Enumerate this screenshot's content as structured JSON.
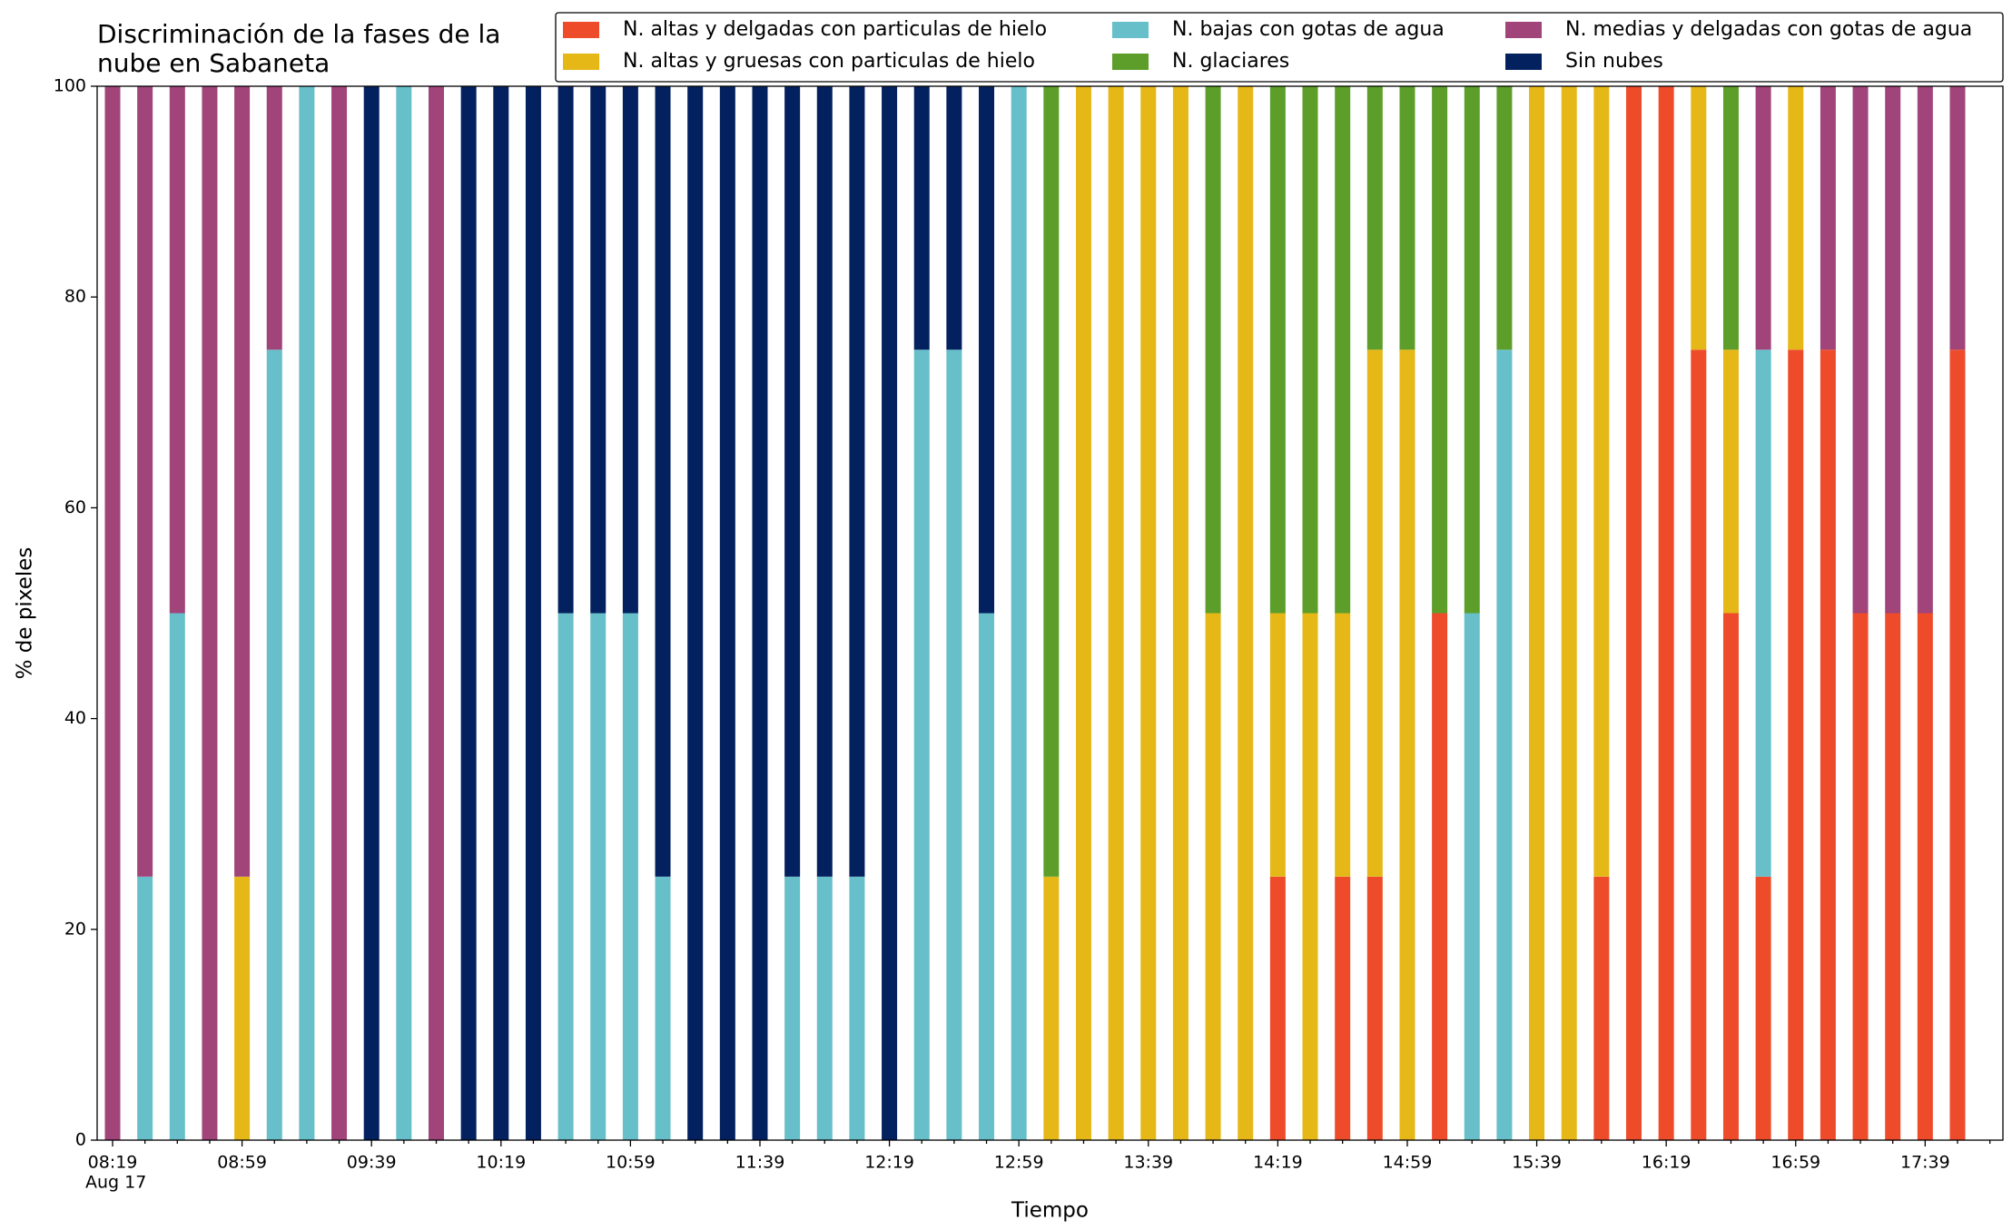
{
  "chart_data": {
    "type": "stacked_bar",
    "title": "Discriminación de la fases de la\nnube en Sabaneta",
    "xlabel": "Tiempo",
    "ylabel": "% de pixeles",
    "date_label": "Aug 17",
    "categories": [
      "08:19",
      null,
      null,
      null,
      "08:59",
      null,
      null,
      null,
      "09:39",
      null,
      null,
      null,
      "10:19",
      null,
      null,
      null,
      "10:59",
      null,
      null,
      null,
      "11:39",
      null,
      null,
      null,
      "12:19",
      null,
      null,
      null,
      "12:59",
      null,
      null,
      null,
      "13:39",
      null,
      null,
      null,
      "14:19",
      null,
      null,
      null,
      "14:59",
      null,
      null,
      null,
      "15:39",
      null,
      null,
      null,
      "16:19",
      null,
      null,
      null,
      "16:59",
      null,
      null,
      null,
      "17:39",
      null
    ],
    "ylim": [
      0,
      100
    ],
    "yticks": [
      0,
      20,
      40,
      60,
      80,
      100
    ],
    "legend": "top-right",
    "series": [
      {
        "name": "N. altas y delgadas con particulas de hielo",
        "color": "#ee4b2b",
        "values": [
          0,
          0,
          0,
          0,
          0,
          0,
          0,
          0,
          0,
          0,
          0,
          0,
          0,
          0,
          0,
          0,
          0,
          0,
          0,
          0,
          0,
          0,
          0,
          0,
          0,
          0,
          0,
          0,
          0,
          0,
          0,
          0,
          0,
          0,
          0,
          0,
          25,
          0,
          25,
          25,
          0,
          50,
          0,
          0,
          0,
          0,
          25,
          100,
          100,
          75,
          50,
          25,
          75,
          75,
          50,
          50,
          50,
          75
        ]
      },
      {
        "name": "N. altas y gruesas con particulas de hielo",
        "color": "#e5b817",
        "values": [
          0,
          0,
          0,
          0,
          25,
          0,
          0,
          0,
          0,
          0,
          0,
          0,
          0,
          0,
          0,
          0,
          0,
          0,
          0,
          0,
          0,
          0,
          0,
          0,
          0,
          0,
          0,
          0,
          0,
          25,
          100,
          100,
          100,
          100,
          50,
          100,
          25,
          50,
          25,
          50,
          75,
          0,
          0,
          0,
          100,
          100,
          75,
          0,
          0,
          25,
          25,
          0,
          25,
          0,
          0,
          0,
          0,
          0
        ]
      },
      {
        "name": "N. bajas con gotas de agua",
        "color": "#66bfc9",
        "values": [
          0,
          25,
          50,
          0,
          0,
          75,
          100,
          0,
          0,
          100,
          0,
          0,
          0,
          0,
          50,
          50,
          50,
          25,
          0,
          0,
          0,
          25,
          25,
          25,
          0,
          75,
          75,
          50,
          100,
          0,
          0,
          0,
          0,
          0,
          0,
          0,
          0,
          0,
          0,
          0,
          0,
          0,
          50,
          75,
          0,
          0,
          0,
          0,
          0,
          0,
          0,
          50,
          0,
          0,
          0,
          0,
          0,
          0
        ]
      },
      {
        "name": "N. glaciares",
        "color": "#5d9e2a",
        "values": [
          0,
          0,
          0,
          0,
          0,
          0,
          0,
          0,
          0,
          0,
          0,
          0,
          0,
          0,
          0,
          0,
          0,
          0,
          0,
          0,
          0,
          0,
          0,
          0,
          0,
          0,
          0,
          0,
          0,
          75,
          0,
          0,
          0,
          0,
          50,
          0,
          50,
          50,
          50,
          25,
          25,
          50,
          50,
          25,
          0,
          0,
          0,
          0,
          0,
          0,
          25,
          0,
          0,
          0,
          0,
          0,
          0,
          0
        ]
      },
      {
        "name": "N. medias y delgadas con gotas de agua",
        "color": "#a0447a",
        "values": [
          100,
          75,
          50,
          100,
          75,
          25,
          0,
          100,
          0,
          0,
          100,
          0,
          0,
          0,
          0,
          0,
          0,
          0,
          0,
          0,
          0,
          0,
          0,
          0,
          0,
          0,
          0,
          0,
          0,
          0,
          0,
          0,
          0,
          0,
          0,
          0,
          0,
          0,
          0,
          0,
          0,
          0,
          0,
          0,
          0,
          0,
          0,
          0,
          0,
          0,
          0,
          25,
          0,
          25,
          50,
          50,
          50,
          25
        ]
      },
      {
        "name": "Sin nubes",
        "color": "#03205f",
        "values": [
          0,
          0,
          0,
          0,
          0,
          0,
          0,
          0,
          100,
          0,
          0,
          100,
          100,
          100,
          50,
          50,
          50,
          75,
          100,
          100,
          100,
          75,
          75,
          75,
          100,
          25,
          25,
          50,
          0,
          0,
          0,
          0,
          0,
          0,
          0,
          0,
          0,
          0,
          0,
          0,
          0,
          0,
          0,
          0,
          0,
          0,
          0,
          0,
          0,
          0,
          0,
          0,
          0,
          0,
          0,
          0,
          0,
          0
        ]
      }
    ]
  }
}
